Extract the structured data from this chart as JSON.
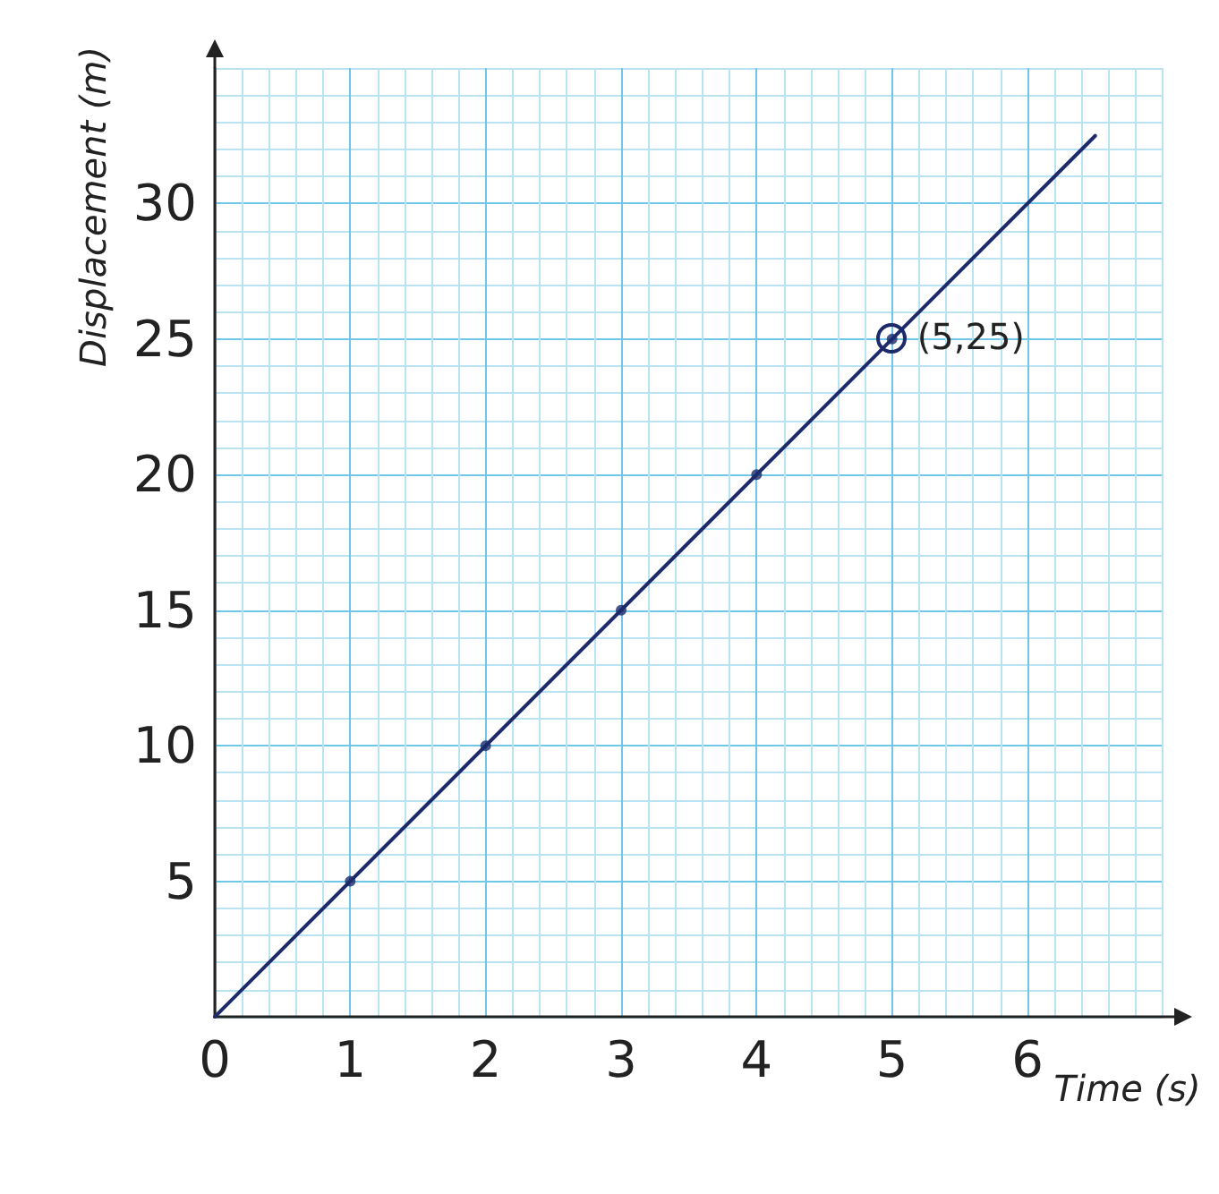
{
  "chart_data": {
    "type": "line",
    "xlabel": "Time (s)",
    "ylabel": "Displacement (m)",
    "series": [
      {
        "color": "#1c2a6b",
        "marker": "none",
        "x": [
          0,
          6.5
        ],
        "values": [
          0,
          32.5
        ]
      },
      {
        "type": "scatter",
        "color": "#1c2a6b",
        "marker": "circle",
        "x": [
          1,
          2,
          3,
          4,
          5
        ],
        "values": [
          5,
          10,
          15,
          20,
          25
        ]
      }
    ],
    "annotations": [
      {
        "text": "(5,25)",
        "x": 5,
        "y": 25
      }
    ],
    "xlim": [
      0,
      7
    ],
    "ylim": [
      0,
      35
    ],
    "xticks": [
      0,
      {
        "value": 0.2,
        "label": null
      },
      {
        "value": 0.4,
        "label": null
      },
      {
        "value": 0.6,
        "label": null
      },
      {
        "value": 0.8,
        "label": null
      },
      1,
      {
        "value": 1.2,
        "label": null
      },
      {
        "value": 1.4,
        "label": null
      },
      {
        "value": 1.6,
        "label": null
      },
      {
        "value": 1.8,
        "label": null
      },
      2,
      {
        "value": 2.2,
        "label": null
      },
      {
        "value": 2.4,
        "label": null
      },
      {
        "value": 2.6,
        "label": null
      },
      {
        "value": 2.8,
        "label": null
      },
      3,
      {
        "value": 3.2,
        "label": null
      },
      {
        "value": 3.4,
        "label": null
      },
      {
        "value": 3.6,
        "label": null
      },
      {
        "value": 3.8,
        "label": null
      },
      4,
      {
        "value": 4.2,
        "label": null
      },
      {
        "value": 4.4,
        "label": null
      },
      {
        "value": 4.6,
        "label": null
      },
      {
        "value": 4.8,
        "label": null
      },
      5,
      {
        "value": 5.2,
        "label": null
      },
      {
        "value": 5.4,
        "label": null
      },
      {
        "value": 5.6,
        "label": null
      },
      {
        "value": 5.8,
        "label": null
      },
      6,
      {
        "value": 6.2,
        "label": null
      },
      {
        "value": 6.4,
        "label": null
      },
      {
        "value": 6.6,
        "label": null
      },
      {
        "value": 6.8,
        "label": null
      },
      {
        "value": 7,
        "label": null
      }
    ],
    "yticks": [
      {
        "value": 0,
        "label": null
      },
      {
        "value": 1,
        "label": null
      },
      {
        "value": 2,
        "label": null
      },
      {
        "value": 3,
        "label": null
      },
      {
        "value": 4,
        "label": null
      },
      5,
      {
        "value": 6,
        "label": null
      },
      {
        "value": 7,
        "label": null
      },
      {
        "value": 8,
        "label": null
      },
      {
        "value": 9,
        "label": null
      },
      10,
      {
        "value": 11,
        "label": null
      },
      {
        "value": 12,
        "label": null
      },
      {
        "value": 13,
        "label": null
      },
      {
        "value": 14,
        "label": null
      },
      15,
      {
        "value": 16,
        "label": null
      },
      {
        "value": 17,
        "label": null
      },
      {
        "value": 18,
        "label": null
      },
      {
        "value": 19,
        "label": null
      },
      20,
      {
        "value": 21,
        "label": null
      },
      {
        "value": 22,
        "label": null
      },
      {
        "value": 23,
        "label": null
      },
      {
        "value": 24,
        "label": null
      },
      25,
      {
        "value": 26,
        "label": null
      },
      {
        "value": 27,
        "label": null
      },
      {
        "value": 28,
        "label": null
      },
      {
        "value": 29,
        "label": null
      },
      30,
      {
        "value": 31,
        "label": null
      },
      {
        "value": 32,
        "label": null
      },
      {
        "value": 33,
        "label": null
      },
      {
        "value": 34,
        "label": null
      },
      {
        "value": 35,
        "label": null
      }
    ],
    "grid": true
  }
}
